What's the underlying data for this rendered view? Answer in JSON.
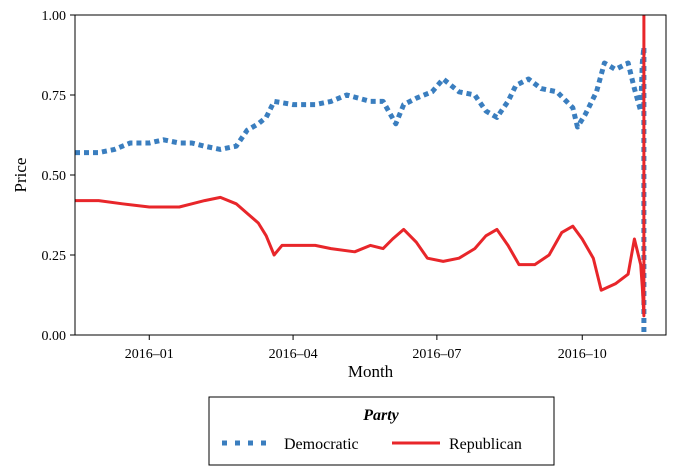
{
  "chart_data": {
    "type": "line",
    "title": "",
    "xlabel": "Month",
    "ylabel": "Price",
    "xlim": [
      "2015-11-15",
      "2016-11-23"
    ],
    "ylim": [
      0,
      1
    ],
    "x_ticks": [
      {
        "date": "2016-01-01",
        "label": "2016–01"
      },
      {
        "date": "2016-04-01",
        "label": "2016–04"
      },
      {
        "date": "2016-07-01",
        "label": "2016–07"
      },
      {
        "date": "2016-10-01",
        "label": "2016–10"
      }
    ],
    "y_ticks": [
      {
        "value": 0,
        "label": "0.00"
      },
      {
        "value": 0.25,
        "label": "0.25"
      },
      {
        "value": 0.5,
        "label": "0.50"
      },
      {
        "value": 0.75,
        "label": "0.75"
      },
      {
        "value": 1,
        "label": "1.00"
      }
    ],
    "grid": false,
    "legend": {
      "title": "Party",
      "position": "bottom"
    },
    "series": [
      {
        "name": "Democratic",
        "color": "#3a7ebf",
        "style": "dotted",
        "points": [
          [
            "2015-11-15",
            0.57
          ],
          [
            "2015-11-30",
            0.57
          ],
          [
            "2015-12-10",
            0.58
          ],
          [
            "2015-12-20",
            0.6
          ],
          [
            "2016-01-01",
            0.6
          ],
          [
            "2016-01-10",
            0.61
          ],
          [
            "2016-01-20",
            0.6
          ],
          [
            "2016-01-28",
            0.6
          ],
          [
            "2016-02-05",
            0.59
          ],
          [
            "2016-02-15",
            0.58
          ],
          [
            "2016-02-25",
            0.59
          ],
          [
            "2016-03-03",
            0.64
          ],
          [
            "2016-03-10",
            0.66
          ],
          [
            "2016-03-15",
            0.68
          ],
          [
            "2016-03-20",
            0.73
          ],
          [
            "2016-04-01",
            0.72
          ],
          [
            "2016-04-15",
            0.72
          ],
          [
            "2016-04-25",
            0.73
          ],
          [
            "2016-05-05",
            0.75
          ],
          [
            "2016-05-20",
            0.73
          ],
          [
            "2016-05-28",
            0.73
          ],
          [
            "2016-06-05",
            0.66
          ],
          [
            "2016-06-10",
            0.72
          ],
          [
            "2016-06-18",
            0.74
          ],
          [
            "2016-06-28",
            0.76
          ],
          [
            "2016-07-05",
            0.8
          ],
          [
            "2016-07-15",
            0.76
          ],
          [
            "2016-07-25",
            0.75
          ],
          [
            "2016-08-01",
            0.7
          ],
          [
            "2016-08-08",
            0.68
          ],
          [
            "2016-08-15",
            0.73
          ],
          [
            "2016-08-20",
            0.78
          ],
          [
            "2016-08-28",
            0.8
          ],
          [
            "2016-09-05",
            0.77
          ],
          [
            "2016-09-15",
            0.76
          ],
          [
            "2016-09-25",
            0.71
          ],
          [
            "2016-09-28",
            0.65
          ],
          [
            "2016-10-03",
            0.69
          ],
          [
            "2016-10-10",
            0.76
          ],
          [
            "2016-10-15",
            0.85
          ],
          [
            "2016-10-22",
            0.83
          ],
          [
            "2016-10-30",
            0.85
          ],
          [
            "2016-11-03",
            0.77
          ],
          [
            "2016-11-07",
            0.7
          ],
          [
            "2016-11-08",
            0.85
          ],
          [
            "2016-11-09",
            0.9
          ],
          [
            "2016-11-09",
            0.0
          ]
        ]
      },
      {
        "name": "Republican",
        "color": "#e8262a",
        "style": "solid",
        "points": [
          [
            "2015-11-15",
            0.42
          ],
          [
            "2015-11-30",
            0.42
          ],
          [
            "2015-12-15",
            0.41
          ],
          [
            "2016-01-01",
            0.4
          ],
          [
            "2016-01-20",
            0.4
          ],
          [
            "2016-01-28",
            0.41
          ],
          [
            "2016-02-05",
            0.42
          ],
          [
            "2016-02-15",
            0.43
          ],
          [
            "2016-02-25",
            0.41
          ],
          [
            "2016-03-03",
            0.38
          ],
          [
            "2016-03-10",
            0.35
          ],
          [
            "2016-03-15",
            0.31
          ],
          [
            "2016-03-20",
            0.25
          ],
          [
            "2016-03-25",
            0.28
          ],
          [
            "2016-04-15",
            0.28
          ],
          [
            "2016-04-25",
            0.27
          ],
          [
            "2016-05-10",
            0.26
          ],
          [
            "2016-05-20",
            0.28
          ],
          [
            "2016-05-28",
            0.27
          ],
          [
            "2016-06-03",
            0.3
          ],
          [
            "2016-06-10",
            0.33
          ],
          [
            "2016-06-18",
            0.29
          ],
          [
            "2016-06-25",
            0.24
          ],
          [
            "2016-07-05",
            0.23
          ],
          [
            "2016-07-15",
            0.24
          ],
          [
            "2016-07-25",
            0.27
          ],
          [
            "2016-08-01",
            0.31
          ],
          [
            "2016-08-08",
            0.33
          ],
          [
            "2016-08-15",
            0.28
          ],
          [
            "2016-08-22",
            0.22
          ],
          [
            "2016-09-01",
            0.22
          ],
          [
            "2016-09-10",
            0.25
          ],
          [
            "2016-09-18",
            0.32
          ],
          [
            "2016-09-25",
            0.34
          ],
          [
            "2016-10-01",
            0.3
          ],
          [
            "2016-10-08",
            0.24
          ],
          [
            "2016-10-13",
            0.14
          ],
          [
            "2016-10-22",
            0.16
          ],
          [
            "2016-10-30",
            0.19
          ],
          [
            "2016-11-03",
            0.3
          ],
          [
            "2016-11-07",
            0.22
          ],
          [
            "2016-11-08",
            0.15
          ],
          [
            "2016-11-09",
            0.06
          ],
          [
            "2016-11-09",
            1.0
          ]
        ]
      }
    ]
  }
}
